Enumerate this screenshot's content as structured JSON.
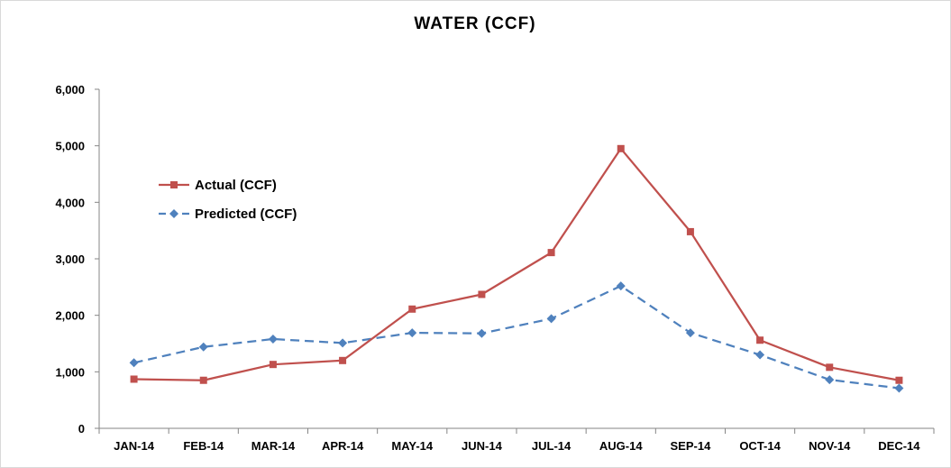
{
  "chart_data": {
    "type": "line",
    "title": "WATER (CCF)",
    "xlabel": "",
    "ylabel": "",
    "categories": [
      "JAN-14",
      "FEB-14",
      "MAR-14",
      "APR-14",
      "MAY-14",
      "JUN-14",
      "JUL-14",
      "AUG-14",
      "SEP-14",
      "OCT-14",
      "NOV-14",
      "DEC-14"
    ],
    "ylim": [
      0,
      6000
    ],
    "yticks": [
      0,
      1000,
      2000,
      3000,
      4000,
      5000,
      6000
    ],
    "ytick_labels": [
      "0",
      "1,000",
      "2,000",
      "3,000",
      "4,000",
      "5,000",
      "6,000"
    ],
    "grid": false,
    "legend_position": "left",
    "series": [
      {
        "name": "Actual (CCF)",
        "color": "#c0504d",
        "line_style": "solid",
        "marker": "square",
        "values": [
          870,
          850,
          1130,
          1200,
          2110,
          2370,
          3110,
          4950,
          3480,
          1560,
          1080,
          850
        ]
      },
      {
        "name": "Predicted (CCF)",
        "color": "#4f81bd",
        "line_style": "dashed",
        "marker": "diamond",
        "values": [
          1160,
          1440,
          1580,
          1510,
          1690,
          1680,
          1940,
          2520,
          1690,
          1300,
          860,
          710
        ]
      }
    ]
  }
}
